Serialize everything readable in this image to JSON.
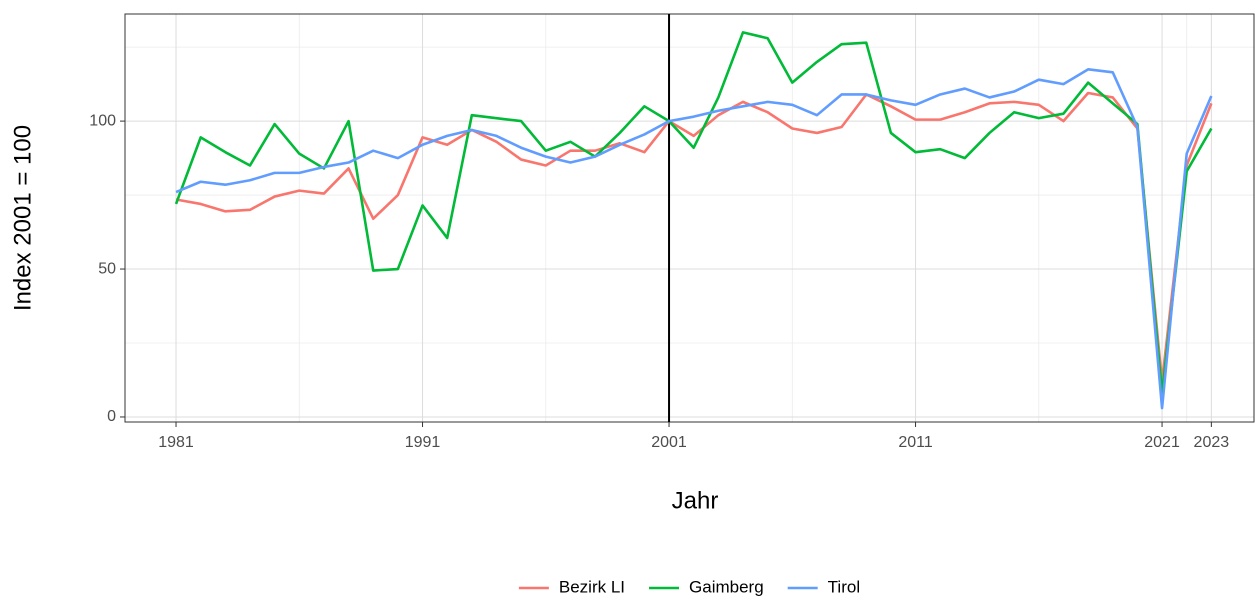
{
  "chart_data": {
    "type": "line",
    "x_label": "Jahr",
    "y_label": "Index 2001 = 100",
    "x": [
      1981,
      1982,
      1983,
      1984,
      1985,
      1986,
      1987,
      1988,
      1989,
      1990,
      1991,
      1992,
      1993,
      1994,
      1995,
      1996,
      1997,
      1998,
      1999,
      2000,
      2001,
      2002,
      2003,
      2004,
      2005,
      2006,
      2007,
      2008,
      2009,
      2010,
      2011,
      2012,
      2013,
      2014,
      2015,
      2016,
      2017,
      2018,
      2019,
      2020,
      2021,
      2022,
      2023
    ],
    "series": [
      {
        "name": "Bezirk LI",
        "color": "#f8766d",
        "values": [
          73.5,
          72,
          69.5,
          70,
          74.5,
          76.5,
          75.5,
          84,
          67,
          75,
          94.5,
          92,
          97,
          93,
          87,
          85,
          90,
          90,
          92.5,
          89.5,
          100,
          95,
          102,
          106.5,
          103,
          97.5,
          96,
          98,
          109,
          105,
          100.5,
          100.5,
          103,
          106,
          106.5,
          105.5,
          100,
          109.5,
          108,
          97.5,
          12,
          85,
          106
        ]
      },
      {
        "name": "Gaimberg",
        "color": "#00ba38",
        "values": [
          72,
          94.5,
          89.5,
          85,
          99,
          89,
          84,
          100,
          49.5,
          50,
          71.5,
          60.5,
          102,
          101,
          100,
          90,
          93,
          88,
          96,
          105,
          100,
          91,
          108,
          130,
          128,
          113,
          120,
          126,
          126.5,
          96,
          89.5,
          90.5,
          87.5,
          96,
          103,
          101,
          102.5,
          113,
          106,
          99,
          8,
          83,
          97.5
        ]
      },
      {
        "name": "Tirol",
        "color": "#619cff",
        "values": [
          76,
          79.5,
          78.5,
          80,
          82.5,
          82.5,
          84.5,
          86,
          90,
          87.5,
          92,
          95,
          97,
          95,
          91,
          88,
          86,
          88,
          92,
          95.5,
          100,
          101.5,
          103.5,
          105,
          106.5,
          105.5,
          102,
          109,
          109,
          107,
          105.5,
          109,
          111,
          108,
          110,
          114,
          112.5,
          117.5,
          116.5,
          98,
          3,
          89,
          108.5
        ]
      }
    ],
    "xlim": [
      1978.93,
      2024.73
    ],
    "ylim": [
      -1.7,
      136.2
    ],
    "xticks": [
      1981,
      1991,
      2001,
      2011,
      2021,
      2023
    ],
    "yticks": [
      0,
      50,
      100
    ],
    "vline": 2001,
    "grid": true,
    "legend": "bottom"
  }
}
